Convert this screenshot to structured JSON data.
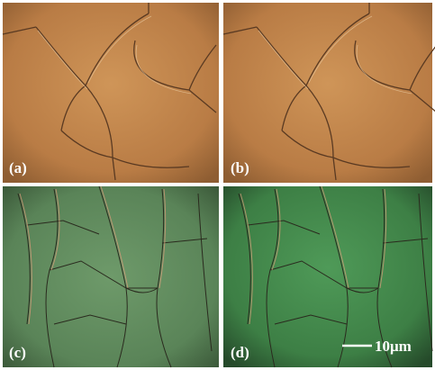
{
  "panels": [
    {
      "label": "(a)"
    },
    {
      "label": "(b)"
    },
    {
      "label": "(c)"
    },
    {
      "label": "(d)"
    }
  ],
  "scale_bar": {
    "label": "10μm"
  }
}
